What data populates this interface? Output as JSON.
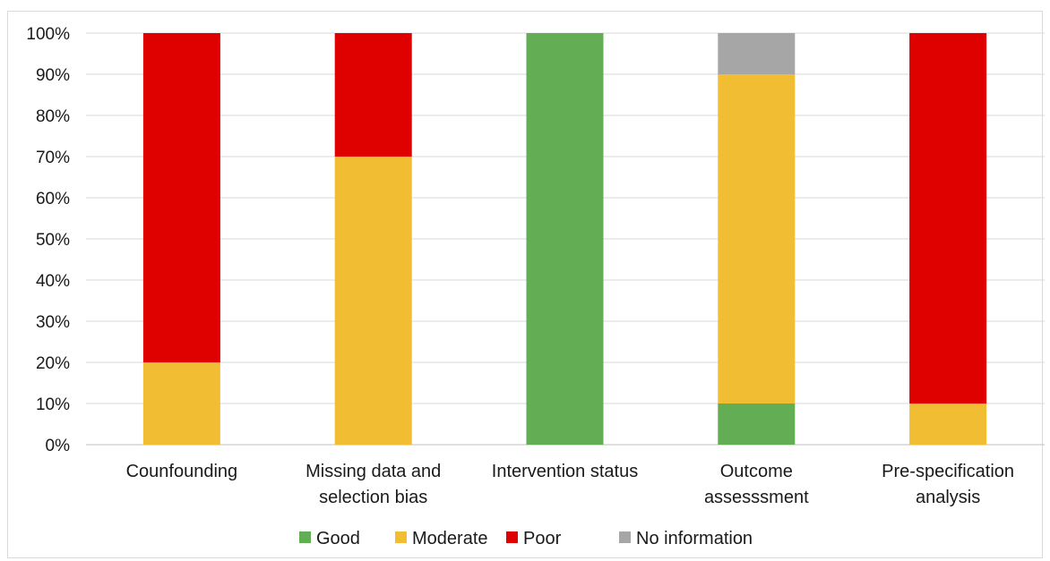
{
  "chart_data": {
    "type": "bar",
    "stacked": true,
    "title": "",
    "xlabel": "",
    "ylabel": "",
    "ylim": [
      0,
      100
    ],
    "yticks": [
      "0%",
      "10%",
      "20%",
      "30%",
      "40%",
      "50%",
      "60%",
      "70%",
      "80%",
      "90%",
      "100%"
    ],
    "grid": true,
    "legend_position": "bottom",
    "categories": [
      [
        "Counfounding"
      ],
      [
        "Missing data and",
        "selection bias"
      ],
      [
        "Intervention status"
      ],
      [
        "Outcome",
        "assesssment"
      ],
      [
        "Pre-specification",
        "analysis"
      ]
    ],
    "series": [
      {
        "name": "Good",
        "color": "#63ad55",
        "values": [
          0,
          0,
          100,
          10,
          0
        ]
      },
      {
        "name": "Moderate",
        "color": "#f0bd33",
        "values": [
          20,
          70,
          0,
          80,
          10
        ]
      },
      {
        "name": "Poor",
        "color": "#df0000",
        "values": [
          80,
          30,
          0,
          0,
          90
        ]
      },
      {
        "name": "No information",
        "color": "#a6a6a6",
        "values": [
          0,
          0,
          0,
          10,
          0
        ]
      }
    ]
  }
}
